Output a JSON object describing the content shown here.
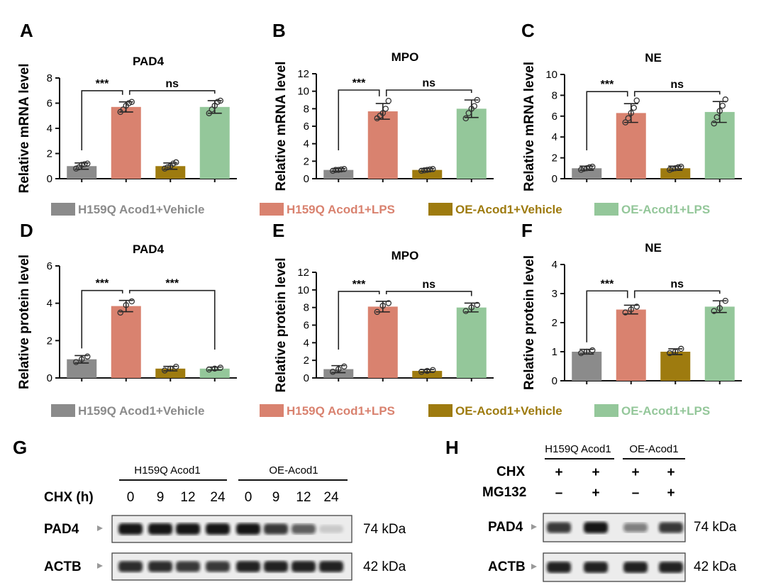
{
  "chart_data": [
    {
      "panel": "A",
      "type": "bar",
      "title": "PAD4",
      "ylabel": "Relative mRNA level",
      "ylim": [
        0,
        8
      ],
      "yticks": [
        0,
        2,
        4,
        6,
        8
      ],
      "values": [
        1.0,
        5.7,
        1.0,
        5.7
      ],
      "errors": [
        0.25,
        0.4,
        0.25,
        0.5
      ],
      "points": [
        [
          0.8,
          0.9,
          1.1,
          1.15,
          1.2
        ],
        [
          5.3,
          5.5,
          5.8,
          6.0,
          6.1
        ],
        [
          0.8,
          0.9,
          1.0,
          1.2,
          1.3
        ],
        [
          5.2,
          5.5,
          5.8,
          6.1,
          6.2
        ]
      ],
      "significance": [
        {
          "from": 0,
          "to": 1,
          "label": "***"
        },
        {
          "from": 1,
          "to": 3,
          "label": "ns"
        }
      ]
    },
    {
      "panel": "B",
      "type": "bar",
      "title": "MPO",
      "ylabel": "Relative mRNA level",
      "ylim": [
        0,
        12
      ],
      "yticks": [
        0,
        2,
        4,
        6,
        8,
        10,
        12
      ],
      "values": [
        1.0,
        7.7,
        1.0,
        8.0
      ],
      "errors": [
        0.15,
        0.9,
        0.15,
        1.0
      ],
      "points": [
        [
          0.9,
          1.0,
          1.0,
          1.05,
          1.1
        ],
        [
          6.9,
          7.2,
          7.5,
          8.0,
          8.9
        ],
        [
          0.9,
          0.95,
          1.0,
          1.05,
          1.1
        ],
        [
          6.9,
          7.5,
          8.0,
          8.3,
          9.0
        ]
      ],
      "significance": [
        {
          "from": 0,
          "to": 1,
          "label": "***"
        },
        {
          "from": 1,
          "to": 3,
          "label": "ns"
        }
      ]
    },
    {
      "panel": "C",
      "type": "bar",
      "title": "NE",
      "ylabel": "Relative mRNA level",
      "ylim": [
        0,
        10
      ],
      "yticks": [
        0,
        2,
        4,
        6,
        8,
        10
      ],
      "values": [
        1.0,
        6.3,
        1.0,
        6.4
      ],
      "errors": [
        0.2,
        0.9,
        0.2,
        1.0
      ],
      "points": [
        [
          0.85,
          0.95,
          1.0,
          1.1,
          1.15
        ],
        [
          5.4,
          5.8,
          6.3,
          6.8,
          7.5
        ],
        [
          0.85,
          0.95,
          1.0,
          1.1,
          1.15
        ],
        [
          5.3,
          5.9,
          6.5,
          7.0,
          7.6
        ]
      ],
      "significance": [
        {
          "from": 0,
          "to": 1,
          "label": "***"
        },
        {
          "from": 1,
          "to": 3,
          "label": "ns"
        }
      ]
    },
    {
      "panel": "D",
      "type": "bar",
      "title": "PAD4",
      "ylabel": "Relative protein level",
      "ylim": [
        0,
        6
      ],
      "yticks": [
        0,
        2,
        4,
        6
      ],
      "values": [
        1.0,
        3.85,
        0.5,
        0.5
      ],
      "errors": [
        0.2,
        0.3,
        0.12,
        0.08
      ],
      "points": [
        [
          0.85,
          1.0,
          1.15
        ],
        [
          3.5,
          3.9,
          4.1
        ],
        [
          0.4,
          0.5,
          0.6
        ],
        [
          0.45,
          0.5,
          0.55
        ]
      ],
      "significance": [
        {
          "from": 0,
          "to": 1,
          "label": "***"
        },
        {
          "from": 1,
          "to": 3,
          "label": "***"
        }
      ]
    },
    {
      "panel": "E",
      "type": "bar",
      "title": "MPO",
      "ylabel": "Relative protein level",
      "ylim": [
        0,
        12
      ],
      "yticks": [
        0,
        2,
        4,
        6,
        8,
        10,
        12
      ],
      "values": [
        1.0,
        8.1,
        0.8,
        8.0
      ],
      "errors": [
        0.4,
        0.6,
        0.15,
        0.5
      ],
      "points": [
        [
          0.7,
          1.0,
          1.3
        ],
        [
          7.5,
          8.2,
          8.5
        ],
        [
          0.7,
          0.8,
          0.9
        ],
        [
          7.6,
          8.0,
          8.3
        ]
      ],
      "significance": [
        {
          "from": 0,
          "to": 1,
          "label": "***"
        },
        {
          "from": 1,
          "to": 3,
          "label": "ns"
        }
      ]
    },
    {
      "panel": "F",
      "type": "bar",
      "title": "NE",
      "ylabel": "Relative protein level",
      "ylim": [
        0,
        4
      ],
      "yticks": [
        0,
        1,
        2,
        3,
        4
      ],
      "values": [
        1.0,
        2.45,
        1.0,
        2.55
      ],
      "errors": [
        0.08,
        0.15,
        0.1,
        0.2
      ],
      "points": [
        [
          0.95,
          1.0,
          1.05
        ],
        [
          2.35,
          2.45,
          2.55
        ],
        [
          0.95,
          1.0,
          1.1
        ],
        [
          2.4,
          2.5,
          2.75
        ]
      ],
      "significance": [
        {
          "from": 0,
          "to": 1,
          "label": "***"
        },
        {
          "from": 1,
          "to": 3,
          "label": "ns"
        }
      ]
    }
  ],
  "colors": [
    "#8b8b8b",
    "#d9826f",
    "#9e7b0f",
    "#94c79a"
  ],
  "legend": [
    "H159Q Acod1+Vehicle",
    "H159Q Acod1+LPS",
    "OE-Acod1+Vehicle",
    "OE-Acod1+LPS"
  ],
  "blot_g": {
    "letter": "G",
    "group1": "H159Q Acod1",
    "group2": "OE-Acod1",
    "row_label": "CHX (h)",
    "timepoints": [
      "0",
      "9",
      "12",
      "24",
      "0",
      "9",
      "12",
      "24"
    ],
    "bands": [
      {
        "label": "PAD4",
        "size": "74 kDa",
        "intensity": [
          1,
          1,
          1,
          1,
          1,
          0.85,
          0.65,
          0.15
        ]
      },
      {
        "label": "ACTB",
        "size": "42 kDa",
        "intensity": [
          0.9,
          0.9,
          0.85,
          0.85,
          0.95,
          0.95,
          0.95,
          0.95
        ]
      }
    ]
  },
  "blot_h": {
    "letter": "H",
    "group1": "H159Q Acod1",
    "group2": "OE-Acod1",
    "rows": [
      {
        "label": "CHX",
        "values": [
          "+",
          "+",
          "+",
          "+"
        ]
      },
      {
        "label": "MG132",
        "values": [
          "–",
          "+",
          "–",
          "+"
        ]
      }
    ],
    "bands": [
      {
        "label": "PAD4",
        "size": "74 kDa",
        "intensity": [
          0.85,
          1,
          0.5,
          0.85
        ]
      },
      {
        "label": "ACTB",
        "size": "42 kDa",
        "intensity": [
          0.95,
          0.95,
          0.95,
          0.95
        ]
      }
    ]
  }
}
